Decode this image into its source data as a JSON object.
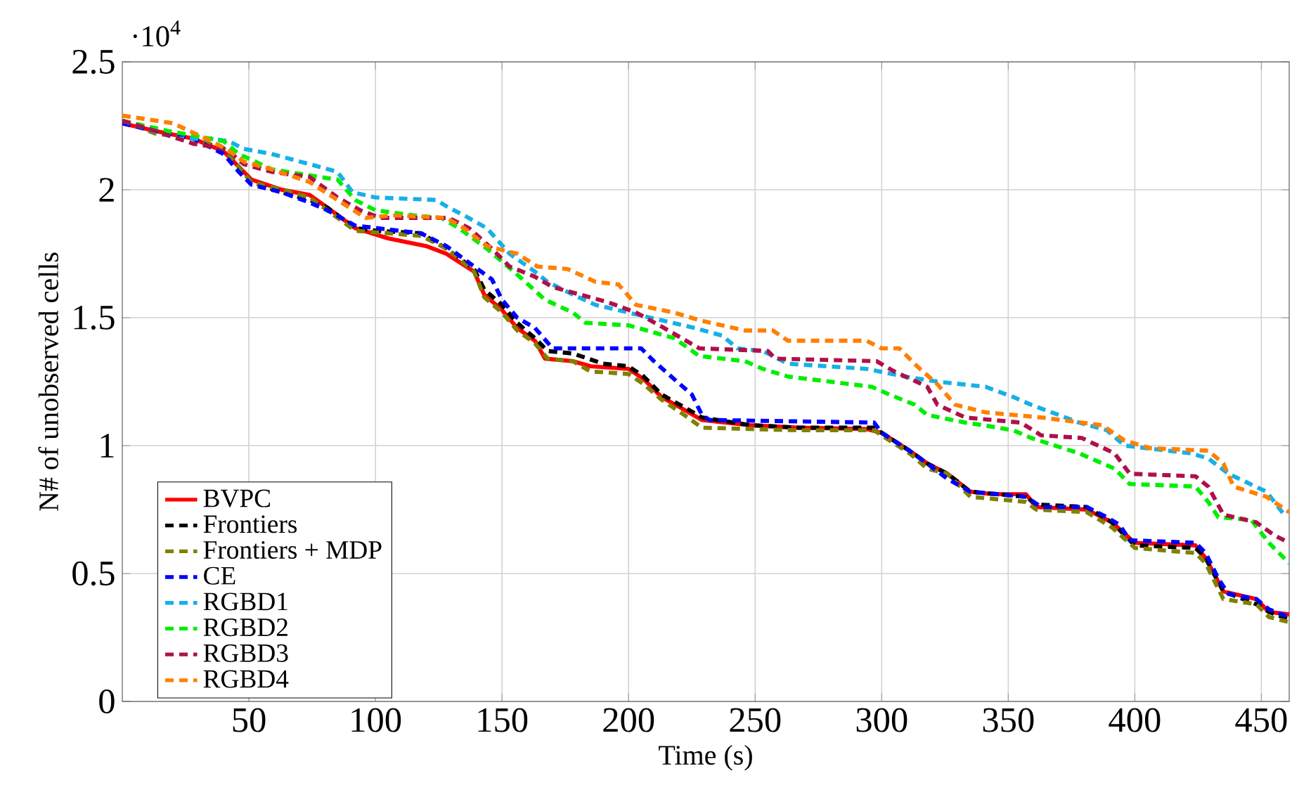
{
  "chart_data": {
    "type": "line",
    "xlabel": "Time (s)",
    "ylabel": "N# of unobserved cells",
    "annotations": [
      "·10$^{4}$"
    ],
    "xlim": [
      0,
      461
    ],
    "ylim": [
      0,
      2.5
    ],
    "xticks": [
      50,
      100,
      150,
      200,
      250,
      300,
      350,
      400,
      450
    ],
    "yticks": [
      0,
      0.5,
      1,
      1.5,
      2,
      2.5
    ],
    "grid": true,
    "legend": "bottom left",
    "marker": "none",
    "line_style": "dashed",
    "series": [
      {
        "name": "BVPC",
        "color": "#ff0000",
        "line_style": "solid",
        "x": [
          0,
          13,
          28,
          40,
          46,
          51,
          63,
          74,
          81,
          92,
          105,
          120,
          128,
          139,
          143,
          150,
          156,
          163,
          167,
          178,
          185,
          200,
          206,
          213,
          222,
          229,
          248,
          267,
          294,
          300,
          311,
          318,
          326,
          335,
          344,
          357,
          361,
          381,
          391,
          400,
          424,
          428,
          435,
          448,
          453,
          461
        ],
        "values": [
          2.26,
          2.23,
          2.2,
          2.15,
          2.09,
          2.04,
          2.0,
          1.98,
          1.93,
          1.85,
          1.81,
          1.78,
          1.75,
          1.68,
          1.59,
          1.53,
          1.46,
          1.41,
          1.34,
          1.33,
          1.31,
          1.3,
          1.26,
          1.19,
          1.14,
          1.1,
          1.08,
          1.07,
          1.065,
          1.05,
          0.98,
          0.93,
          0.89,
          0.82,
          0.81,
          0.81,
          0.76,
          0.75,
          0.7,
          0.62,
          0.61,
          0.56,
          0.43,
          0.4,
          0.35,
          0.34
        ]
      },
      {
        "name": "Frontiers",
        "color": "#000000",
        "x": [
          0,
          13,
          28,
          40,
          46,
          51,
          63,
          74,
          81,
          92,
          100,
          118,
          128,
          139,
          143,
          150,
          156,
          163,
          168,
          178,
          190,
          200,
          206,
          213,
          222,
          229,
          248,
          267,
          297,
          300,
          311,
          318,
          326,
          335,
          357,
          361,
          381,
          391,
          400,
          424,
          428,
          435,
          448,
          453,
          461
        ],
        "values": [
          2.27,
          2.23,
          2.2,
          2.16,
          2.09,
          2.03,
          1.99,
          1.96,
          1.93,
          1.85,
          1.84,
          1.83,
          1.77,
          1.69,
          1.61,
          1.55,
          1.48,
          1.42,
          1.37,
          1.36,
          1.32,
          1.31,
          1.27,
          1.2,
          1.15,
          1.11,
          1.08,
          1.07,
          1.07,
          1.05,
          0.98,
          0.93,
          0.89,
          0.82,
          0.8,
          0.77,
          0.76,
          0.7,
          0.61,
          0.6,
          0.56,
          0.43,
          0.38,
          0.35,
          0.32
        ]
      },
      {
        "name": "Frontiers + MDP",
        "color": "#808000",
        "x": [
          0,
          13,
          28,
          40,
          46,
          51,
          63,
          74,
          81,
          92,
          118,
          128,
          139,
          143,
          150,
          156,
          163,
          168,
          178,
          185,
          200,
          206,
          213,
          222,
          229,
          267,
          297,
          300,
          311,
          318,
          326,
          335,
          357,
          361,
          381,
          391,
          400,
          424,
          428,
          435,
          448,
          453,
          461
        ],
        "values": [
          2.27,
          2.22,
          2.2,
          2.16,
          2.09,
          2.03,
          2.0,
          1.97,
          1.92,
          1.84,
          1.82,
          1.77,
          1.68,
          1.58,
          1.52,
          1.45,
          1.4,
          1.34,
          1.33,
          1.29,
          1.28,
          1.24,
          1.18,
          1.12,
          1.07,
          1.06,
          1.06,
          1.04,
          0.97,
          0.91,
          0.89,
          0.8,
          0.78,
          0.75,
          0.74,
          0.68,
          0.6,
          0.58,
          0.54,
          0.4,
          0.38,
          0.33,
          0.31
        ]
      },
      {
        "name": "CE",
        "color": "#0000ff",
        "x": [
          0,
          13,
          28,
          40,
          46,
          51,
          63,
          74,
          81,
          92,
          118,
          128,
          139,
          146,
          150,
          156,
          163,
          170,
          205,
          210,
          218,
          225,
          229,
          232,
          297,
          300,
          311,
          318,
          326,
          335,
          357,
          363,
          381,
          389,
          394,
          398,
          424,
          428,
          433,
          437,
          448,
          453,
          461
        ],
        "values": [
          2.26,
          2.23,
          2.2,
          2.14,
          2.07,
          2.02,
          1.99,
          1.95,
          1.92,
          1.86,
          1.83,
          1.78,
          1.7,
          1.65,
          1.57,
          1.5,
          1.46,
          1.38,
          1.38,
          1.33,
          1.26,
          1.2,
          1.12,
          1.1,
          1.09,
          1.05,
          0.98,
          0.93,
          0.87,
          0.82,
          0.8,
          0.76,
          0.76,
          0.72,
          0.69,
          0.63,
          0.62,
          0.58,
          0.48,
          0.42,
          0.4,
          0.36,
          0.33
        ]
      },
      {
        "name": "RGBD1",
        "color": "#17b0e6",
        "x": [
          0,
          22,
          35,
          42,
          48,
          59,
          74,
          85,
          91,
          100,
          124,
          129,
          135,
          144,
          153,
          163,
          168,
          178,
          187,
          200,
          213,
          226,
          237,
          243,
          253,
          263,
          294,
          309,
          322,
          341,
          352,
          359,
          378,
          389,
          396,
          422,
          429,
          437,
          452,
          459
        ],
        "values": [
          2.27,
          2.2,
          2.2,
          2.19,
          2.16,
          2.14,
          2.1,
          2.07,
          1.99,
          1.97,
          1.96,
          1.93,
          1.9,
          1.85,
          1.75,
          1.68,
          1.64,
          1.59,
          1.55,
          1.52,
          1.49,
          1.46,
          1.43,
          1.38,
          1.37,
          1.32,
          1.3,
          1.27,
          1.25,
          1.23,
          1.19,
          1.16,
          1.09,
          1.06,
          1.0,
          0.97,
          0.95,
          0.89,
          0.82,
          0.73
        ]
      },
      {
        "name": "RGBD2",
        "color": "#00ee00",
        "x": [
          0,
          18,
          40,
          46,
          59,
          78,
          85,
          92,
          100,
          115,
          126,
          133,
          144,
          157,
          167,
          178,
          183,
          200,
          218,
          228,
          246,
          253,
          263,
          296,
          303,
          313,
          318,
          333,
          340,
          352,
          359,
          378,
          392,
          398,
          424,
          429,
          433,
          446,
          453,
          461
        ],
        "values": [
          2.27,
          2.23,
          2.19,
          2.14,
          2.08,
          2.05,
          2.04,
          1.96,
          1.92,
          1.9,
          1.89,
          1.85,
          1.77,
          1.66,
          1.57,
          1.52,
          1.48,
          1.47,
          1.42,
          1.35,
          1.33,
          1.3,
          1.27,
          1.23,
          1.2,
          1.16,
          1.12,
          1.09,
          1.08,
          1.06,
          1.03,
          0.97,
          0.91,
          0.85,
          0.84,
          0.78,
          0.72,
          0.71,
          0.62,
          0.54
        ]
      },
      {
        "name": "RGBD3",
        "color": "#b0104a",
        "x": [
          0,
          13,
          28,
          41,
          48,
          59,
          74,
          85,
          94,
          102,
          129,
          137,
          146,
          153,
          163,
          170,
          181,
          192,
          203,
          214,
          228,
          255,
          258,
          298,
          305,
          318,
          322,
          333,
          355,
          363,
          379,
          392,
          398,
          424,
          429,
          435,
          448,
          455,
          461
        ],
        "values": [
          2.27,
          2.23,
          2.18,
          2.16,
          2.1,
          2.07,
          2.05,
          1.97,
          1.92,
          1.89,
          1.89,
          1.85,
          1.77,
          1.7,
          1.66,
          1.62,
          1.59,
          1.56,
          1.52,
          1.46,
          1.38,
          1.37,
          1.34,
          1.33,
          1.29,
          1.23,
          1.16,
          1.11,
          1.09,
          1.04,
          1.03,
          0.97,
          0.89,
          0.88,
          0.84,
          0.73,
          0.7,
          0.65,
          0.62
        ]
      },
      {
        "name": "RGBD4",
        "color": "#ff8000",
        "x": [
          0,
          20,
          33,
          41,
          48,
          59,
          74,
          85,
          96,
          107,
          128,
          135,
          144,
          156,
          164,
          176,
          187,
          196,
          203,
          218,
          228,
          246,
          257,
          263,
          294,
          300,
          307,
          314,
          322,
          329,
          341,
          363,
          387,
          396,
          406,
          429,
          435,
          439,
          452,
          461
        ],
        "values": [
          2.29,
          2.26,
          2.2,
          2.16,
          2.11,
          2.08,
          2.03,
          1.96,
          1.89,
          1.9,
          1.89,
          1.85,
          1.78,
          1.75,
          1.7,
          1.69,
          1.64,
          1.63,
          1.55,
          1.52,
          1.49,
          1.45,
          1.45,
          1.41,
          1.41,
          1.38,
          1.38,
          1.31,
          1.24,
          1.16,
          1.13,
          1.11,
          1.08,
          1.02,
          0.99,
          0.98,
          0.93,
          0.84,
          0.8,
          0.74
        ]
      }
    ]
  }
}
